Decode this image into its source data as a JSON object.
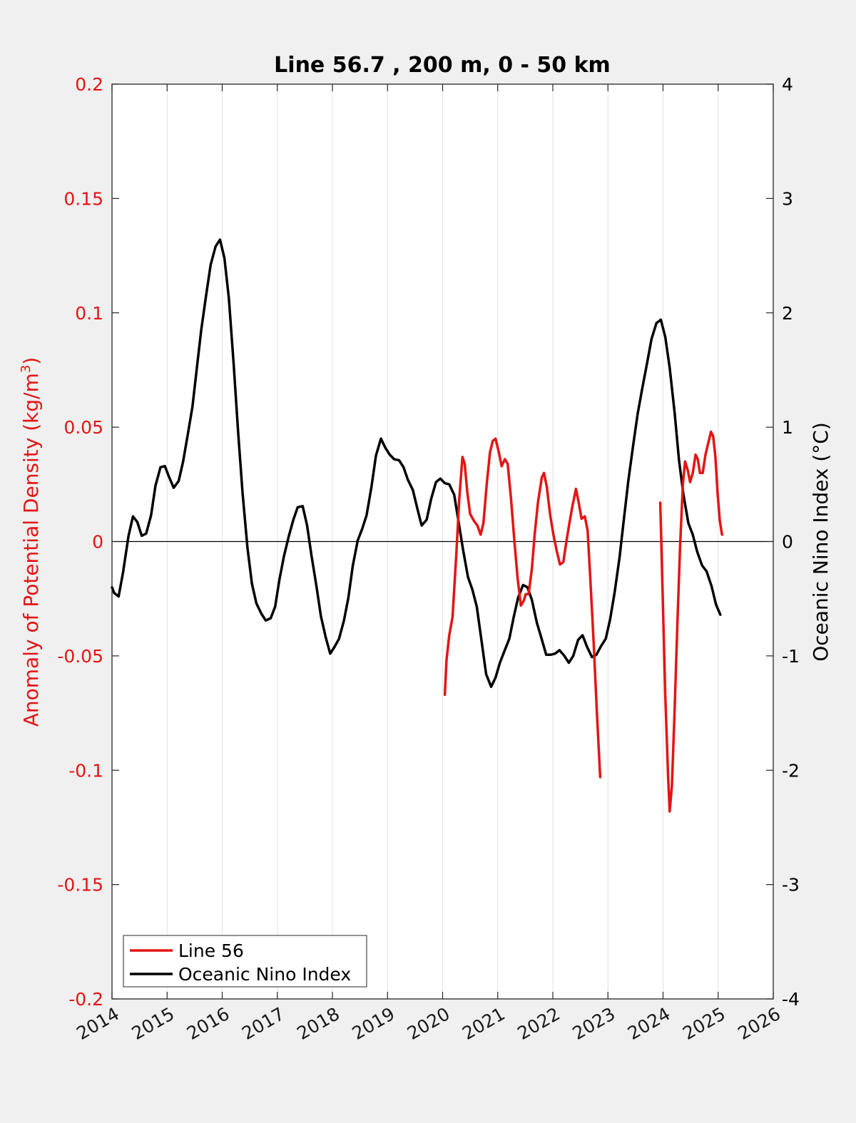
{
  "chart_data": {
    "type": "line",
    "title": "Line 56.7 , 200 m, 0 - 50 km",
    "xlim": [
      2014,
      2026
    ],
    "x_ticks": [
      "2014",
      "2015",
      "2016",
      "2017",
      "2018",
      "2019",
      "2020",
      "2021",
      "2022",
      "2023",
      "2024",
      "2025",
      "2026"
    ],
    "ylabel_left": "Anomaly of Potential Density (kg/m",
    "ylabel_left_sup": "3",
    "ylabel_left_close": ")",
    "ylim_left": [
      -0.2,
      0.2
    ],
    "y_ticks_left": [
      "0.2",
      "0.15",
      "0.1",
      "0.05",
      "0",
      "-0.05",
      "-0.1",
      "-0.15",
      "-0.2"
    ],
    "ylabel_right": "Oceanic Nino Index (°C)",
    "ylim_right": [
      -4,
      4
    ],
    "y_ticks_right": [
      "4",
      "3",
      "2",
      "1",
      "0",
      "-1",
      "-2",
      "-3",
      "-4"
    ],
    "grid": "vertical",
    "legend_position": "bottom-left",
    "colors": {
      "line56": "#e41414",
      "oni": "#000000"
    },
    "series": [
      {
        "name": "Line 56",
        "axis": "left",
        "segments": [
          [
            [
              2020.04,
              -0.067
            ],
            [
              2020.07,
              -0.052
            ],
            [
              2020.12,
              -0.041
            ],
            [
              2020.18,
              -0.033
            ],
            [
              2020.25,
              -0.005
            ],
            [
              2020.3,
              0.018
            ],
            [
              2020.36,
              0.037
            ],
            [
              2020.4,
              0.034
            ],
            [
              2020.45,
              0.021
            ],
            [
              2020.5,
              0.012
            ],
            [
              2020.57,
              0.009
            ],
            [
              2020.63,
              0.007
            ],
            [
              2020.69,
              0.003
            ],
            [
              2020.74,
              0.008
            ],
            [
              2020.8,
              0.025
            ],
            [
              2020.86,
              0.039
            ],
            [
              2020.91,
              0.044
            ],
            [
              2020.96,
              0.045
            ],
            [
              2021.02,
              0.039
            ],
            [
              2021.07,
              0.033
            ],
            [
              2021.13,
              0.036
            ],
            [
              2021.18,
              0.034
            ],
            [
              2021.24,
              0.019
            ],
            [
              2021.3,
              0.001
            ],
            [
              2021.36,
              -0.016
            ],
            [
              2021.42,
              -0.028
            ],
            [
              2021.47,
              -0.026
            ],
            [
              2021.51,
              -0.023
            ],
            [
              2021.56,
              -0.023
            ],
            [
              2021.62,
              -0.012
            ],
            [
              2021.67,
              0.003
            ],
            [
              2021.73,
              0.017
            ],
            [
              2021.8,
              0.028
            ],
            [
              2021.84,
              0.03
            ],
            [
              2021.89,
              0.024
            ],
            [
              2021.95,
              0.012
            ],
            [
              2022.01,
              0.003
            ],
            [
              2022.07,
              -0.004
            ],
            [
              2022.13,
              -0.01
            ],
            [
              2022.19,
              -0.009
            ],
            [
              2022.24,
              -0.001
            ],
            [
              2022.3,
              0.008
            ],
            [
              2022.36,
              0.016
            ],
            [
              2022.42,
              0.023
            ],
            [
              2022.47,
              0.017
            ],
            [
              2022.52,
              0.01
            ],
            [
              2022.58,
              0.011
            ],
            [
              2022.63,
              0.005
            ],
            [
              2022.68,
              -0.016
            ],
            [
              2022.74,
              -0.044
            ],
            [
              2022.8,
              -0.075
            ],
            [
              2022.86,
              -0.103
            ]
          ],
          [
            [
              2023.95,
              0.017
            ],
            [
              2023.99,
              -0.02
            ],
            [
              2024.04,
              -0.067
            ],
            [
              2024.09,
              -0.102
            ],
            [
              2024.12,
              -0.118
            ],
            [
              2024.16,
              -0.107
            ],
            [
              2024.21,
              -0.074
            ],
            [
              2024.26,
              -0.036
            ],
            [
              2024.31,
              -0.002
            ],
            [
              2024.36,
              0.025
            ],
            [
              2024.4,
              0.035
            ],
            [
              2024.45,
              0.031
            ],
            [
              2024.49,
              0.026
            ],
            [
              2024.54,
              0.03
            ],
            [
              2024.59,
              0.038
            ],
            [
              2024.63,
              0.036
            ],
            [
              2024.67,
              0.03
            ],
            [
              2024.72,
              0.03
            ],
            [
              2024.77,
              0.038
            ],
            [
              2024.82,
              0.043
            ],
            [
              2024.87,
              0.048
            ],
            [
              2024.91,
              0.046
            ],
            [
              2024.95,
              0.037
            ],
            [
              2024.99,
              0.021
            ],
            [
              2025.03,
              0.009
            ],
            [
              2025.07,
              0.003
            ]
          ]
        ]
      },
      {
        "name": "Oceanic Nino Index",
        "axis": "right",
        "segments": [
          [
            [
              2014.0,
              -0.4
            ],
            [
              2014.04,
              -0.45
            ],
            [
              2014.12,
              -0.48
            ],
            [
              2014.2,
              -0.27
            ],
            [
              2014.3,
              0.05
            ],
            [
              2014.38,
              0.22
            ],
            [
              2014.46,
              0.17
            ],
            [
              2014.54,
              0.05
            ],
            [
              2014.62,
              0.07
            ],
            [
              2014.71,
              0.23
            ],
            [
              2014.79,
              0.49
            ],
            [
              2014.88,
              0.65
            ],
            [
              2014.96,
              0.66
            ],
            [
              2015.04,
              0.56
            ],
            [
              2015.12,
              0.47
            ],
            [
              2015.21,
              0.53
            ],
            [
              2015.29,
              0.7
            ],
            [
              2015.37,
              0.92
            ],
            [
              2015.46,
              1.18
            ],
            [
              2015.54,
              1.52
            ],
            [
              2015.62,
              1.85
            ],
            [
              2015.71,
              2.16
            ],
            [
              2015.79,
              2.42
            ],
            [
              2015.88,
              2.58
            ],
            [
              2015.96,
              2.64
            ],
            [
              2016.04,
              2.48
            ],
            [
              2016.12,
              2.13
            ],
            [
              2016.21,
              1.54
            ],
            [
              2016.29,
              0.95
            ],
            [
              2016.37,
              0.42
            ],
            [
              2016.46,
              -0.06
            ],
            [
              2016.54,
              -0.37
            ],
            [
              2016.62,
              -0.54
            ],
            [
              2016.71,
              -0.63
            ],
            [
              2016.79,
              -0.69
            ],
            [
              2016.88,
              -0.67
            ],
            [
              2016.96,
              -0.57
            ],
            [
              2017.04,
              -0.33
            ],
            [
              2017.12,
              -0.13
            ],
            [
              2017.21,
              0.05
            ],
            [
              2017.29,
              0.19
            ],
            [
              2017.37,
              0.3
            ],
            [
              2017.46,
              0.31
            ],
            [
              2017.54,
              0.14
            ],
            [
              2017.62,
              -0.12
            ],
            [
              2017.71,
              -0.39
            ],
            [
              2017.79,
              -0.65
            ],
            [
              2017.88,
              -0.84
            ],
            [
              2017.96,
              -0.98
            ],
            [
              2018.04,
              -0.92
            ],
            [
              2018.12,
              -0.85
            ],
            [
              2018.21,
              -0.69
            ],
            [
              2018.29,
              -0.49
            ],
            [
              2018.37,
              -0.21
            ],
            [
              2018.46,
              0.01
            ],
            [
              2018.54,
              0.11
            ],
            [
              2018.62,
              0.23
            ],
            [
              2018.71,
              0.48
            ],
            [
              2018.79,
              0.75
            ],
            [
              2018.88,
              0.9
            ],
            [
              2018.96,
              0.82
            ],
            [
              2019.04,
              0.76
            ],
            [
              2019.12,
              0.72
            ],
            [
              2019.21,
              0.71
            ],
            [
              2019.29,
              0.65
            ],
            [
              2019.37,
              0.54
            ],
            [
              2019.46,
              0.45
            ],
            [
              2019.54,
              0.29
            ],
            [
              2019.62,
              0.14
            ],
            [
              2019.71,
              0.19
            ],
            [
              2019.79,
              0.37
            ],
            [
              2019.88,
              0.52
            ],
            [
              2019.96,
              0.55
            ],
            [
              2020.04,
              0.51
            ],
            [
              2020.12,
              0.5
            ],
            [
              2020.21,
              0.41
            ],
            [
              2020.29,
              0.17
            ],
            [
              2020.37,
              -0.07
            ],
            [
              2020.46,
              -0.31
            ],
            [
              2020.54,
              -0.42
            ],
            [
              2020.62,
              -0.57
            ],
            [
              2020.71,
              -0.88
            ],
            [
              2020.79,
              -1.16
            ],
            [
              2020.88,
              -1.27
            ],
            [
              2020.96,
              -1.19
            ],
            [
              2021.04,
              -1.06
            ],
            [
              2021.12,
              -0.96
            ],
            [
              2021.21,
              -0.85
            ],
            [
              2021.29,
              -0.66
            ],
            [
              2021.37,
              -0.49
            ],
            [
              2021.46,
              -0.38
            ],
            [
              2021.54,
              -0.4
            ],
            [
              2021.62,
              -0.51
            ],
            [
              2021.71,
              -0.71
            ],
            [
              2021.79,
              -0.84
            ],
            [
              2021.88,
              -0.99
            ],
            [
              2021.96,
              -0.99
            ],
            [
              2022.04,
              -0.98
            ],
            [
              2022.12,
              -0.95
            ],
            [
              2022.21,
              -1.0
            ],
            [
              2022.29,
              -1.06
            ],
            [
              2022.37,
              -1.0
            ],
            [
              2022.46,
              -0.86
            ],
            [
              2022.54,
              -0.82
            ],
            [
              2022.62,
              -0.92
            ],
            [
              2022.71,
              -1.01
            ],
            [
              2022.79,
              -0.99
            ],
            [
              2022.88,
              -0.91
            ],
            [
              2022.96,
              -0.85
            ],
            [
              2023.04,
              -0.68
            ],
            [
              2023.12,
              -0.45
            ],
            [
              2023.21,
              -0.14
            ],
            [
              2023.29,
              0.2
            ],
            [
              2023.37,
              0.53
            ],
            [
              2023.46,
              0.85
            ],
            [
              2023.54,
              1.12
            ],
            [
              2023.62,
              1.33
            ],
            [
              2023.71,
              1.56
            ],
            [
              2023.79,
              1.77
            ],
            [
              2023.88,
              1.91
            ],
            [
              2023.96,
              1.94
            ],
            [
              2024.04,
              1.79
            ],
            [
              2024.12,
              1.52
            ],
            [
              2024.21,
              1.13
            ],
            [
              2024.29,
              0.71
            ],
            [
              2024.37,
              0.41
            ],
            [
              2024.46,
              0.16
            ],
            [
              2024.54,
              0.06
            ],
            [
              2024.62,
              -0.09
            ],
            [
              2024.71,
              -0.21
            ],
            [
              2024.79,
              -0.26
            ],
            [
              2024.88,
              -0.39
            ],
            [
              2024.96,
              -0.55
            ],
            [
              2025.04,
              -0.64
            ]
          ]
        ]
      }
    ]
  },
  "legend": {
    "items": [
      {
        "label": "Line 56",
        "color": "#e41414"
      },
      {
        "label": "Oceanic Nino Index",
        "color": "#000000"
      }
    ]
  }
}
